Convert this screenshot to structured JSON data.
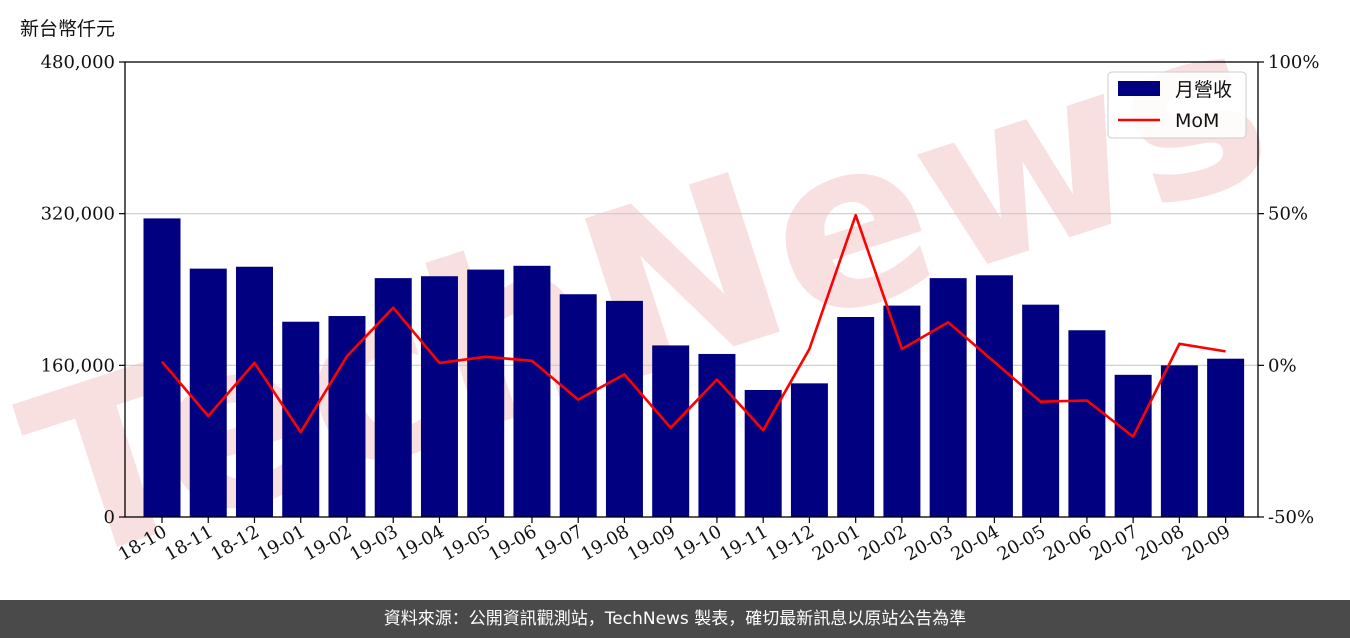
{
  "y_unit_label": "新台幣仟元",
  "footer_text": "資料來源：公開資訊觀測站，TechNews 製表，確切最新訊息以原站公告為準",
  "watermark_text": "TechNews",
  "colors": {
    "bar": "#000080",
    "line": "#ff0000",
    "grid": "#cccccc",
    "watermark": "#f6d6d6",
    "footer_bg": "#4a4a4a"
  },
  "chart_data": {
    "type": "bar",
    "title": "",
    "categories": [
      "18-10",
      "18-11",
      "18-12",
      "19-01",
      "19-02",
      "19-03",
      "19-04",
      "19-05",
      "19-06",
      "19-07",
      "19-08",
      "19-09",
      "19-10",
      "19-11",
      "19-12",
      "20-01",
      "20-02",
      "20-03",
      "20-04",
      "20-05",
      "20-06",
      "20-07",
      "20-08",
      "20-09"
    ],
    "series": [
      {
        "name": "月營收",
        "type": "bar",
        "axis": "left",
        "values": [
          315000,
          262000,
          264000,
          206000,
          212000,
          252000,
          254000,
          261000,
          265000,
          235000,
          228000,
          181000,
          172000,
          134000,
          141000,
          211000,
          223000,
          252000,
          255000,
          224000,
          197000,
          150000,
          160000,
          167000
        ]
      },
      {
        "name": "MoM",
        "type": "line",
        "axis": "right",
        "values": [
          1.2,
          -16.7,
          0.8,
          -22,
          3,
          19,
          0.8,
          2.8,
          1.5,
          -11.3,
          -3,
          -20.6,
          -4.7,
          -21.4,
          5.4,
          49.5,
          5.4,
          14.2,
          1.1,
          -12,
          -11.6,
          -23.5,
          7.1,
          4.6
        ]
      }
    ],
    "left_axis": {
      "ylim": [
        0,
        480000
      ],
      "ticks": [
        "0",
        "160,000",
        "320,000",
        "480,000"
      ],
      "tick_values": [
        0,
        160000,
        320000,
        480000
      ]
    },
    "right_axis": {
      "ylim": [
        -50,
        100
      ],
      "ticks": [
        "-50%",
        "0%",
        "50%",
        "100%"
      ],
      "tick_values": [
        -50,
        0,
        50,
        100
      ]
    },
    "grid": "horizontal",
    "legend_position": "top-right"
  }
}
